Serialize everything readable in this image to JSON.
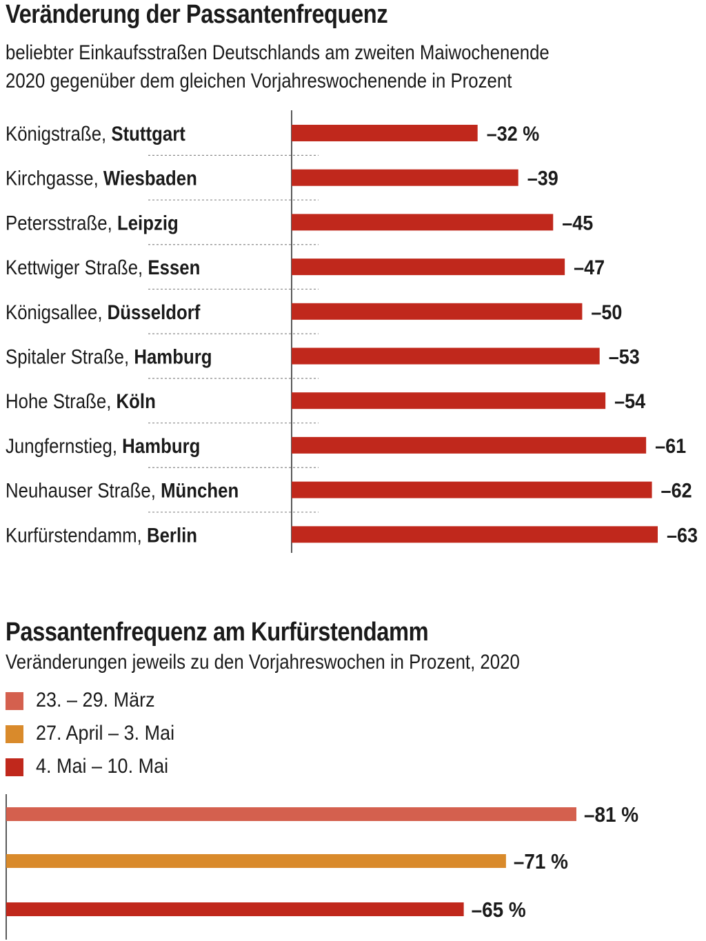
{
  "chart_data": [
    {
      "type": "bar",
      "orientation": "horizontal",
      "title": "Veränderung der Passantenfrequenz",
      "subtitle_lines": [
        "beliebter Einkaufsstraßen Deutschlands am zweiten Maiwochenende",
        "2020 gegenüber dem gleichen Vorjahreswochenende in Prozent"
      ],
      "bar_color": "#c0281c",
      "value_unit_first": " %",
      "categories": [
        {
          "street": "Königstraße, ",
          "city": "Stuttgart"
        },
        {
          "street": "Kirchgasse, ",
          "city": "Wiesbaden"
        },
        {
          "street": "Petersstraße, ",
          "city": "Leipzig"
        },
        {
          "street": "Kettwiger Straße, ",
          "city": "Essen"
        },
        {
          "street": "Königsallee, ",
          "city": "Düsseldorf"
        },
        {
          "street": "Spitaler Straße, ",
          "city": "Hamburg"
        },
        {
          "street": "Hohe Straße, ",
          "city": "Köln"
        },
        {
          "street": "Jungfernstieg, ",
          "city": "Hamburg"
        },
        {
          "street": "Neuhauser Straße, ",
          "city": "München"
        },
        {
          "street": "Kurfürstendamm, ",
          "city": "Berlin"
        }
      ],
      "values": [
        -32,
        -39,
        -45,
        -47,
        -50,
        -53,
        -54,
        -61,
        -62,
        -63
      ],
      "value_labels": [
        "–32 %",
        "–39",
        "–45",
        "–47",
        "–50",
        "–53",
        "–54",
        "–61",
        "–62",
        "–63"
      ],
      "xlim": [
        0,
        -63
      ]
    },
    {
      "type": "bar",
      "orientation": "horizontal",
      "title": "Passantenfrequenz am Kurfürstendamm",
      "subtitle": "Veränderungen jeweils zu den Vorjahreswochen in Prozent, 2020",
      "legend_placement": "top-left",
      "series": [
        {
          "name": "23. – 29. März",
          "value": -81,
          "label": "–81 %",
          "color": "#d4604e"
        },
        {
          "name": "27. April – 3. Mai",
          "value": -71,
          "label": "–71 %",
          "color": "#d98a2b"
        },
        {
          "name": "4. Mai – 10. Mai",
          "value": -65,
          "label": "–65 %",
          "color": "#c0281c"
        }
      ],
      "xlim": [
        0,
        -81
      ]
    }
  ]
}
